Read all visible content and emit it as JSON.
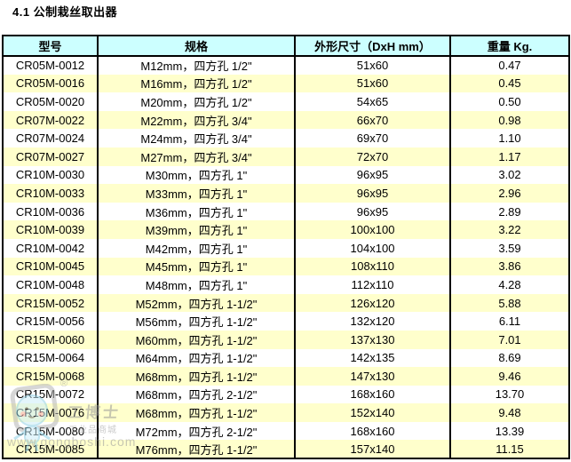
{
  "page_title": "4.1  公制栽丝取出器",
  "table": {
    "headers": [
      "型号",
      "规格",
      "外形尺寸（DxH mm）",
      "重量 Kg."
    ],
    "rows": [
      [
        "CR05M-0012",
        "M12mm，四方孔 1/2\"",
        "51x60",
        "0.47"
      ],
      [
        "CR05M-0016",
        "M16mm，四方孔 1/2\"",
        "51x60",
        "0.45"
      ],
      [
        "CR05M-0020",
        "M20mm，四方孔 1/2\"",
        "54x65",
        "0.50"
      ],
      [
        "CR07M-0022",
        "M22mm，四方孔 3/4\"",
        "66x70",
        "0.98"
      ],
      [
        "CR07M-0024",
        "M24mm，四方孔 3/4\"",
        "69x70",
        "1.10"
      ],
      [
        "CR07M-0027",
        "M27mm，四方孔 3/4\"",
        "72x70",
        "1.17"
      ],
      [
        "CR10M-0030",
        "M30mm，四方孔 1\"",
        "96x95",
        "3.02"
      ],
      [
        "CR10M-0033",
        "M33mm，四方孔 1\"",
        "96x95",
        "2.96"
      ],
      [
        "CR10M-0036",
        "M36mm，四方孔 1\"",
        "96x95",
        "2.89"
      ],
      [
        "CR10M-0039",
        "M39mm，四方孔 1\"",
        "100x100",
        "3.22"
      ],
      [
        "CR10M-0042",
        "M42mm，四方孔 1\"",
        "104x100",
        "3.59"
      ],
      [
        "CR10M-0045",
        "M45mm，四方孔 1\"",
        "108x110",
        "3.86"
      ],
      [
        "CR10M-0048",
        "M48mm，四方孔 1\"",
        "112x110",
        "4.28"
      ],
      [
        "CR15M-0052",
        "M52mm，四方孔 1-1/2\"",
        "126x120",
        "5.88"
      ],
      [
        "CR15M-0056",
        "M56mm，四方孔 1-1/2\"",
        "132x120",
        "6.11"
      ],
      [
        "CR15M-0060",
        "M60mm，四方孔 1-1/2\"",
        "137x130",
        "7.01"
      ],
      [
        "CR15M-0064",
        "M64mm，四方孔 1-1/2\"",
        "142x135",
        "8.69"
      ],
      [
        "CR15M-0068",
        "M68mm，四方孔 1-1/2\"",
        "147x130",
        "9.46"
      ],
      [
        "CR15M-0072",
        "M68mm，四方孔 2-1/2\"",
        "168x160",
        "13.70"
      ],
      [
        "CR15M-0076",
        "M68mm，四方孔 1-1/2\"",
        "152x140",
        "9.48"
      ],
      [
        "CR15M-0080",
        "M72mm，四方孔 2-1/2\"",
        "168x160",
        "13.39"
      ],
      [
        "CR15M-0085",
        "M76mm，四方孔 1-1/2\"",
        "157x140",
        "11.15"
      ]
    ]
  },
  "watermark": {
    "registered": "®",
    "brand": "工博士",
    "subtitle": "工业品商城",
    "url": "www.gongboshi.com"
  },
  "colors": {
    "header_bg": "#CCFFFF",
    "row_alt_bg": "#FFFFCC",
    "border": "#000000"
  }
}
